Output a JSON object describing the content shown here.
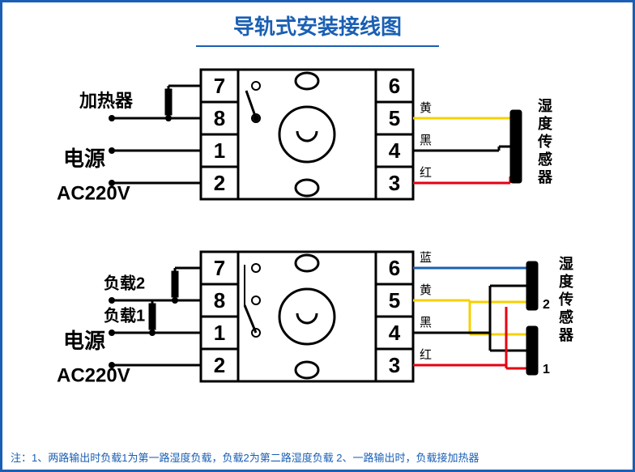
{
  "colors": {
    "frame": "#1a5fb4",
    "title": "#1a5fb4",
    "stroke": "#000000",
    "bg": "#ffffff",
    "yellow": "#f7d000",
    "black": "#000000",
    "red": "#e60012",
    "blue": "#1a5fb4",
    "note": "#1a5fb4"
  },
  "title": "导轨式安装接线图",
  "note": "注：1、两路输出时负载1为第一路湿度负载，负载2为第二路湿度负载  2、一路输出时，负载接加热器",
  "terminals": {
    "left": [
      "7",
      "8",
      "1",
      "2"
    ],
    "right": [
      "6",
      "5",
      "4",
      "3"
    ]
  },
  "labels": {
    "heater": "加热器",
    "power_top": "电源",
    "power_bot": "AC220V",
    "sensor": "湿度传感器",
    "load1": "负载1",
    "load2": "负载2",
    "yellow": "黄",
    "black": "黑",
    "red": "红",
    "blue": "蓝"
  },
  "layout": {
    "term_w": 46,
    "term_h": 40,
    "font_term": 26,
    "font_label": 22,
    "font_small": 16,
    "font_wire": 15,
    "wire_w": 3
  }
}
